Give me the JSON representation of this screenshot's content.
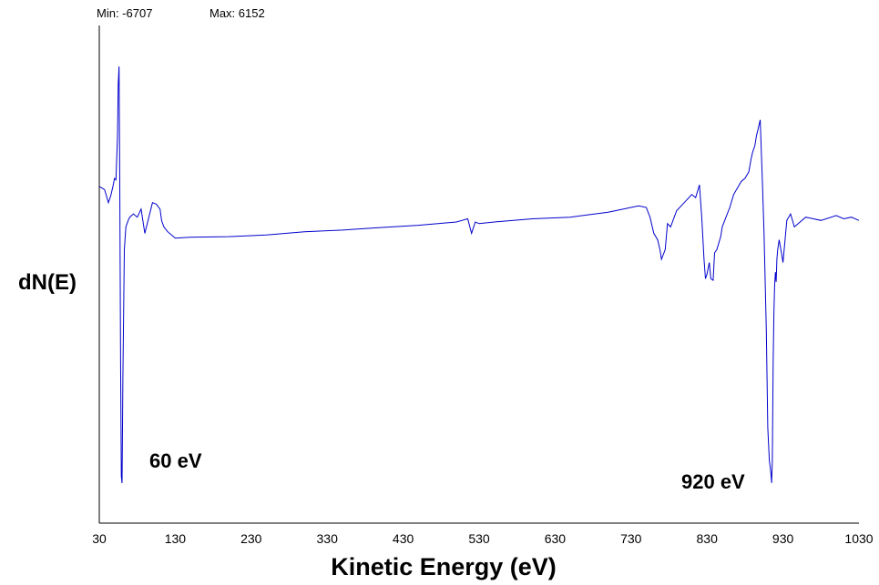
{
  "chart_data": {
    "type": "line",
    "min_text": "Min: -6707",
    "max_text": "Max: 6152",
    "xlabel": "Kinetic Energy (eV)",
    "ylabel": "dN(E)",
    "xlim": [
      30,
      1030
    ],
    "ylim": [
      -6707,
      6152
    ],
    "xticks": [
      "30",
      "130",
      "230",
      "330",
      "430",
      "530",
      "630",
      "730",
      "830",
      "930",
      "1030"
    ],
    "annotations": [
      "60 eV",
      "920 eV"
    ],
    "series": [
      {
        "color": "#0000cc",
        "x": [
          30,
          37,
          42,
          45,
          48,
          50,
          52,
          54,
          55,
          56,
          57,
          58,
          59,
          60,
          61,
          62,
          63,
          65,
          68,
          70,
          75,
          80,
          85,
          90,
          100,
          105,
          110,
          112,
          115,
          120,
          130,
          150,
          200,
          250,
          300,
          350,
          400,
          450,
          500,
          515,
          520,
          525,
          530,
          550,
          600,
          650,
          700,
          740,
          750,
          755,
          760,
          765,
          768,
          770,
          775,
          778,
          782,
          790,
          800,
          810,
          815,
          820,
          823,
          826,
          828,
          830,
          833,
          835,
          838,
          840,
          843,
          848,
          850,
          855,
          860,
          865,
          870,
          875,
          880,
          885,
          888,
          890,
          893,
          895,
          897,
          900,
          903,
          905,
          908,
          910,
          912,
          914,
          915,
          916,
          917,
          918,
          919,
          920,
          921,
          922,
          923,
          925,
          928,
          930,
          935,
          940,
          945,
          950,
          960,
          980,
          1000,
          1010,
          1020,
          1030
        ],
        "y": [
          2450,
          2350,
          1950,
          2150,
          2450,
          2700,
          2650,
          4000,
          5600,
          6152,
          2500,
          -3000,
          -6500,
          -6707,
          -3500,
          -1500,
          500,
          1200,
          1400,
          1500,
          1600,
          1500,
          1750,
          1000,
          1950,
          1900,
          1750,
          1400,
          1200,
          1050,
          850,
          880,
          900,
          950,
          1050,
          1100,
          1180,
          1250,
          1350,
          1450,
          1000,
          1350,
          1300,
          1350,
          1450,
          1500,
          1650,
          1850,
          1800,
          1500,
          1000,
          800,
          500,
          200,
          500,
          1300,
          1200,
          1700,
          1950,
          2200,
          2100,
          2500,
          1500,
          200,
          -400,
          -250,
          100,
          -400,
          -450,
          400,
          500,
          900,
          1200,
          1500,
          1800,
          2200,
          2400,
          2600,
          2700,
          2900,
          3300,
          3500,
          3700,
          4000,
          4200,
          4500,
          2500,
          1000,
          -2000,
          -5000,
          -6000,
          -6400,
          -6700,
          -6000,
          -3000,
          -1500,
          -600,
          -200,
          -500,
          200,
          500,
          800,
          400,
          100,
          1400,
          1600,
          1200,
          1300,
          1500,
          1400,
          1550,
          1450,
          1500,
          1400
        ]
      }
    ]
  }
}
